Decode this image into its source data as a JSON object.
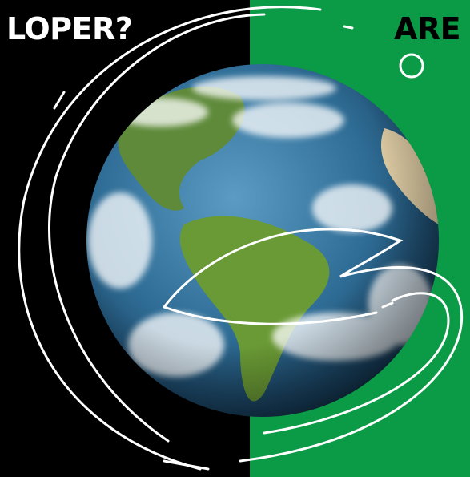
{
  "left_text": "LOPER?",
  "right_text": "ARE Y"
}
